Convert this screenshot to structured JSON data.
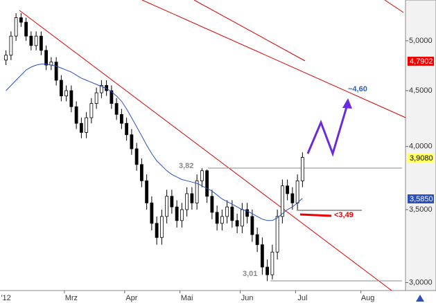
{
  "chart_data": {
    "type": "candlestick",
    "log_scale": true,
    "categories": [
      "'12",
      null,
      null,
      null,
      null,
      null,
      null,
      null,
      null,
      null,
      null,
      null,
      null,
      "Mrz",
      null,
      null,
      null,
      null,
      null,
      null,
      null,
      null,
      null,
      null,
      null,
      "Apr",
      null,
      null,
      null,
      null,
      null,
      null,
      null,
      null,
      null,
      null,
      "Mai",
      null,
      null,
      null,
      null,
      null,
      null,
      null,
      null,
      null,
      null,
      null,
      "Jun",
      null,
      null,
      null,
      null,
      null,
      null,
      null,
      null,
      null,
      null,
      "Jul",
      null,
      null,
      null,
      null,
      null,
      null,
      null,
      null,
      null,
      null,
      null,
      null,
      "Aug",
      null,
      null,
      null,
      null,
      null,
      null,
      null
    ],
    "open": [
      4.8,
      4.85,
      5.05,
      5.25,
      5.2,
      5.05,
      4.95,
      5.05,
      4.9,
      4.75,
      4.78,
      4.6,
      4.45,
      4.5,
      4.35,
      4.2,
      4.12,
      4.25,
      4.38,
      4.48,
      4.55,
      4.5,
      4.38,
      4.28,
      4.2,
      4.1,
      3.98,
      3.85,
      3.72,
      3.55,
      3.4,
      3.3,
      3.45,
      3.6,
      3.52,
      3.42,
      3.5,
      3.62,
      3.55,
      3.72,
      3.8,
      3.6,
      3.48,
      3.4,
      3.45,
      3.52,
      3.42,
      3.38,
      3.5,
      3.45,
      3.32,
      3.25,
      3.1,
      3.05,
      3.2,
      3.45,
      3.68,
      3.62,
      3.55,
      3.72,
      null,
      null,
      null,
      null,
      null,
      null,
      null,
      null,
      null,
      null,
      null,
      null,
      null,
      null,
      null,
      null,
      null,
      null,
      null,
      null
    ],
    "high": [
      4.9,
      5.1,
      5.3,
      5.3,
      5.25,
      5.1,
      5.1,
      5.1,
      4.95,
      4.83,
      4.83,
      4.65,
      4.55,
      4.55,
      4.4,
      4.25,
      4.3,
      4.43,
      4.53,
      4.6,
      4.6,
      4.55,
      4.43,
      4.33,
      4.25,
      4.15,
      4.03,
      3.9,
      3.77,
      3.6,
      3.45,
      3.5,
      3.65,
      3.65,
      3.57,
      3.55,
      3.67,
      3.67,
      3.77,
      3.82,
      3.81,
      3.65,
      3.53,
      3.5,
      3.57,
      3.57,
      3.47,
      3.55,
      3.55,
      3.5,
      3.37,
      3.3,
      3.15,
      3.25,
      3.5,
      3.73,
      3.73,
      3.67,
      3.77,
      3.95,
      null,
      null,
      null,
      null,
      null,
      null,
      null,
      null,
      null,
      null,
      null,
      null,
      null,
      null,
      null,
      null,
      null,
      null,
      null,
      null
    ],
    "low": [
      4.75,
      4.8,
      5.0,
      5.15,
      5.0,
      4.9,
      4.9,
      4.85,
      4.7,
      4.7,
      4.55,
      4.4,
      4.4,
      4.3,
      4.15,
      4.07,
      4.07,
      4.2,
      4.33,
      4.43,
      4.45,
      4.33,
      4.23,
      4.15,
      4.05,
      3.93,
      3.8,
      3.67,
      3.5,
      3.35,
      3.25,
      3.25,
      3.4,
      3.47,
      3.37,
      3.37,
      3.45,
      3.5,
      3.5,
      3.67,
      3.55,
      3.43,
      3.35,
      3.35,
      3.4,
      3.37,
      3.33,
      3.33,
      3.4,
      3.27,
      3.2,
      3.05,
      3.01,
      3.02,
      3.15,
      3.4,
      3.57,
      3.5,
      3.5,
      3.67,
      null,
      null,
      null,
      null,
      null,
      null,
      null,
      null,
      null,
      null,
      null,
      null,
      null,
      null,
      null,
      null,
      null,
      null,
      null,
      null
    ],
    "close": [
      4.85,
      5.05,
      5.25,
      5.2,
      5.05,
      4.95,
      5.05,
      4.9,
      4.75,
      4.78,
      4.6,
      4.45,
      4.5,
      4.35,
      4.2,
      4.12,
      4.25,
      4.38,
      4.48,
      4.55,
      4.5,
      4.38,
      4.28,
      4.2,
      4.1,
      3.98,
      3.85,
      3.72,
      3.55,
      3.4,
      3.3,
      3.45,
      3.6,
      3.52,
      3.42,
      3.5,
      3.62,
      3.55,
      3.72,
      3.8,
      3.6,
      3.48,
      3.4,
      3.45,
      3.52,
      3.42,
      3.38,
      3.5,
      3.45,
      3.32,
      3.25,
      3.1,
      3.05,
      3.2,
      3.45,
      3.68,
      3.62,
      3.55,
      3.72,
      3.908,
      null,
      null,
      null,
      null,
      null,
      null,
      null,
      null,
      null,
      null,
      null,
      null,
      null,
      null,
      null,
      null,
      null,
      null,
      null,
      null
    ],
    "moving_average": {
      "color": "#2a4fc0",
      "values": [
        4.5,
        4.55,
        4.6,
        4.65,
        4.7,
        4.73,
        4.75,
        4.76,
        4.76,
        4.75,
        4.74,
        4.72,
        4.7,
        4.68,
        4.65,
        4.62,
        4.6,
        4.58,
        4.56,
        4.54,
        4.52,
        4.49,
        4.45,
        4.4,
        4.33,
        4.25,
        4.17,
        4.09,
        4.01,
        3.94,
        3.88,
        3.84,
        3.8,
        3.77,
        3.75,
        3.73,
        3.72,
        3.71,
        3.7,
        3.68,
        3.66,
        3.64,
        3.61,
        3.58,
        3.56,
        3.54,
        3.52,
        3.5,
        3.49,
        3.47,
        3.45,
        3.43,
        3.42,
        3.42,
        3.44,
        3.47,
        3.5,
        3.52,
        3.55,
        3.585,
        null,
        null,
        null,
        null,
        null,
        null,
        null,
        null,
        null,
        null,
        null,
        null,
        null,
        null,
        null,
        null,
        null,
        null,
        null,
        null
      ]
    },
    "ylim": [
      2.95,
      5.45
    ],
    "yticks": [
      {
        "value": 3,
        "label": "3,0000"
      },
      {
        "value": 3.5,
        "label": "3,5000"
      },
      {
        "value": 4,
        "label": "4,0000"
      },
      {
        "value": 4.5,
        "label": "4,5000"
      },
      {
        "value": 5,
        "label": "5,0000"
      }
    ],
    "annotations": [
      "3,82",
      "3,01",
      "<3,49",
      "~4,60"
    ],
    "price_tags": [
      "4,7902",
      "3,9080",
      "3,5850"
    ]
  }
}
